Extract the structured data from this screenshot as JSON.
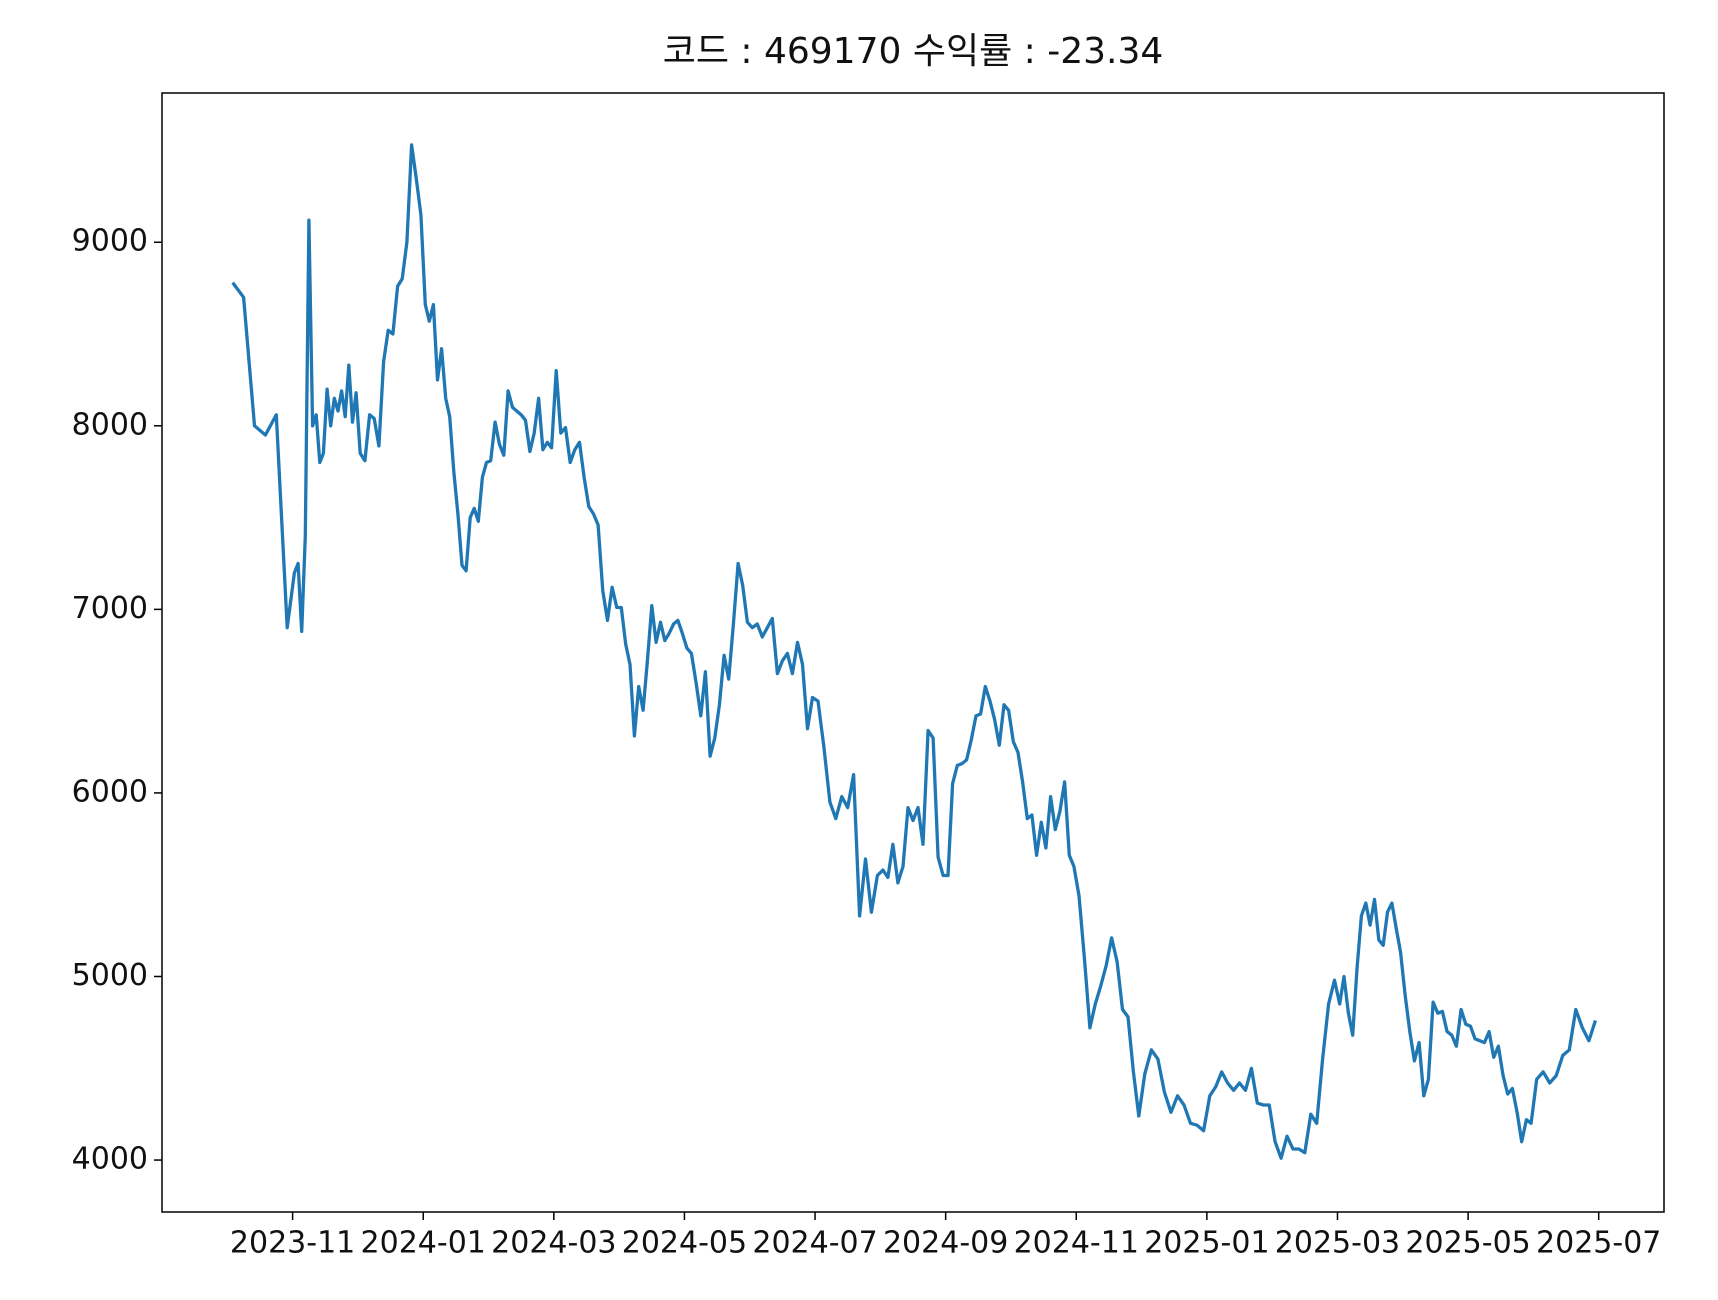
{
  "chart_data": {
    "type": "line",
    "title": "코드 : 469170 수익률 : -23.34",
    "color": "#1f77b4",
    "x": [
      "2023-10",
      "2023-10",
      "2023-10",
      "2023-10",
      "2023-10",
      "2023-10",
      "2023-11",
      "2023-11",
      "2023-11",
      "2023-11",
      "2023-11",
      "2023-11",
      "2023-11",
      "2023-11",
      "2023-11",
      "2023-11",
      "2023-11",
      "2023-11",
      "2023-11",
      "2023-11",
      "2023-11",
      "2023-11",
      "2023-11",
      "2023-11",
      "2023-12",
      "2023-12",
      "2023-12",
      "2023-12",
      "2023-12",
      "2023-12",
      "2023-12",
      "2023-12",
      "2023-12",
      "2023-12",
      "2023-12",
      "2023-12",
      "2023-12",
      "2023-12",
      "2024-01",
      "2024-01",
      "2024-01",
      "2024-01",
      "2024-01",
      "2024-01",
      "2024-01",
      "2024-01",
      "2024-01",
      "2024-01",
      "2024-01",
      "2024-01",
      "2024-01",
      "2024-01",
      "2024-01",
      "2024-01",
      "2024-02",
      "2024-02",
      "2024-02",
      "2024-02",
      "2024-02",
      "2024-02",
      "2024-02",
      "2024-02",
      "2024-02",
      "2024-02",
      "2024-02",
      "2024-02",
      "2024-02",
      "2024-02",
      "2024-02",
      "2024-03",
      "2024-03",
      "2024-03",
      "2024-03",
      "2024-03",
      "2024-03",
      "2024-03",
      "2024-03",
      "2024-03",
      "2024-03",
      "2024-03",
      "2024-03",
      "2024-03",
      "2024-03",
      "2024-04",
      "2024-04",
      "2024-04",
      "2024-04",
      "2024-04",
      "2024-04",
      "2024-04",
      "2024-04",
      "2024-04",
      "2024-04",
      "2024-04",
      "2024-04",
      "2024-04",
      "2024-04",
      "2024-04",
      "2024-05",
      "2024-05",
      "2024-05",
      "2024-05",
      "2024-05",
      "2024-05",
      "2024-05",
      "2024-05",
      "2024-05",
      "2024-05",
      "2024-05",
      "2024-05",
      "2024-05",
      "2024-05",
      "2024-06",
      "2024-06",
      "2024-06",
      "2024-06",
      "2024-06",
      "2024-06",
      "2024-06",
      "2024-06",
      "2024-06",
      "2024-06",
      "2024-06",
      "2024-06",
      "2024-06",
      "2024-07",
      "2024-07",
      "2024-07",
      "2024-07",
      "2024-07",
      "2024-07",
      "2024-07",
      "2024-07",
      "2024-07",
      "2024-07",
      "2024-07",
      "2024-08",
      "2024-08",
      "2024-08",
      "2024-08",
      "2024-08",
      "2024-08",
      "2024-08",
      "2024-08",
      "2024-08",
      "2024-08",
      "2024-08",
      "2024-08",
      "2024-08",
      "2024-09",
      "2024-09",
      "2024-09",
      "2024-09",
      "2024-09",
      "2024-09",
      "2024-09",
      "2024-09",
      "2024-09",
      "2024-09",
      "2024-09",
      "2024-09",
      "2024-09",
      "2024-09",
      "2024-10",
      "2024-10",
      "2024-10",
      "2024-10",
      "2024-10",
      "2024-10",
      "2024-10",
      "2024-10",
      "2024-10",
      "2024-10",
      "2024-10",
      "2024-10",
      "2024-10",
      "2024-10",
      "2024-11",
      "2024-11",
      "2024-11",
      "2024-11",
      "2024-11",
      "2024-11",
      "2024-11",
      "2024-11",
      "2024-11",
      "2024-11",
      "2024-11",
      "2024-11",
      "2024-12",
      "2024-12",
      "2024-12",
      "2024-12",
      "2024-12",
      "2024-12",
      "2024-12",
      "2024-12",
      "2024-12",
      "2024-12",
      "2025-01",
      "2025-01",
      "2025-01",
      "2025-01",
      "2025-01",
      "2025-01",
      "2025-01",
      "2025-01",
      "2025-01",
      "2025-01",
      "2025-01",
      "2025-02",
      "2025-02",
      "2025-02",
      "2025-02",
      "2025-02",
      "2025-02",
      "2025-02",
      "2025-02",
      "2025-02",
      "2025-02",
      "2025-02",
      "2025-03",
      "2025-03",
      "2025-03",
      "2025-03",
      "2025-03",
      "2025-03",
      "2025-03",
      "2025-03",
      "2025-03",
      "2025-03",
      "2025-03",
      "2025-03",
      "2025-03",
      "2025-03",
      "2025-03",
      "2025-04",
      "2025-04",
      "2025-04",
      "2025-04",
      "2025-04",
      "2025-04",
      "2025-04",
      "2025-04",
      "2025-04",
      "2025-04",
      "2025-04",
      "2025-04",
      "2025-04",
      "2025-04",
      "2025-05",
      "2025-05",
      "2025-05",
      "2025-05",
      "2025-05",
      "2025-05",
      "2025-05",
      "2025-05",
      "2025-05",
      "2025-05",
      "2025-05",
      "2025-05",
      "2025-05",
      "2025-05",
      "2025-06",
      "2025-06",
      "2025-06",
      "2025-06",
      "2025-06",
      "2025-06",
      "2025-06",
      "2025-06",
      "2025-06",
      "2025-06"
    ],
    "values": [
      8780,
      8700,
      8000,
      7950,
      8060,
      6900,
      7200,
      7250,
      6880,
      7400,
      9120,
      8000,
      8060,
      7800,
      7850,
      8200,
      8000,
      8150,
      8080,
      8190,
      8050,
      8330,
      8020,
      8180,
      7850,
      7810,
      8060,
      8040,
      7890,
      8350,
      8520,
      8500,
      8760,
      8800,
      9000,
      9530,
      9350,
      9150,
      8660,
      8570,
      8660,
      8250,
      8420,
      8150,
      8050,
      7750,
      7520,
      7240,
      7210,
      7500,
      7550,
      7480,
      7720,
      7800,
      7810,
      8020,
      7900,
      7840,
      8190,
      8100,
      8080,
      8060,
      8030,
      7860,
      7960,
      8150,
      7870,
      7910,
      7880,
      8300,
      7960,
      7990,
      7800,
      7870,
      7910,
      7720,
      7560,
      7520,
      7460,
      7100,
      6940,
      7120,
      7010,
      7010,
      6810,
      6700,
      6310,
      6580,
      6450,
      6720,
      7020,
      6820,
      6930,
      6830,
      6870,
      6920,
      6940,
      6870,
      6790,
      6760,
      6600,
      6420,
      6660,
      6200,
      6300,
      6480,
      6750,
      6620,
      6920,
      7250,
      7130,
      6930,
      6900,
      6920,
      6850,
      6900,
      6950,
      6650,
      6720,
      6760,
      6650,
      6820,
      6700,
      6350,
      6520,
      6500,
      6250,
      5950,
      5860,
      5980,
      5920,
      6100,
      5330,
      5640,
      5350,
      5550,
      5580,
      5540,
      5720,
      5510,
      5600,
      5920,
      5850,
      5920,
      5720,
      6340,
      6300,
      5650,
      5550,
      5550,
      6050,
      6150,
      6160,
      6180,
      6290,
      6420,
      6430,
      6580,
      6500,
      6400,
      6260,
      6480,
      6450,
      6280,
      6220,
      6060,
      5860,
      5880,
      5660,
      5840,
      5700,
      5980,
      5800,
      5900,
      6060,
      5660,
      5600,
      5440,
      5100,
      4720,
      4850,
      4950,
      5060,
      5210,
      5080,
      4820,
      4780,
      4480,
      4240,
      4470,
      4600,
      4550,
      4370,
      4260,
      4350,
      4300,
      4200,
      4190,
      4160,
      4350,
      4400,
      4480,
      4420,
      4380,
      4420,
      4380,
      4500,
      4310,
      4300,
      4300,
      4100,
      4010,
      4130,
      4060,
      4060,
      4040,
      4250,
      4200,
      4550,
      4850,
      4980,
      4850,
      5000,
      4800,
      4680,
      5050,
      5330,
      5400,
      5280,
      5420,
      5200,
      5170,
      5350,
      5400,
      5260,
      5130,
      4900,
      4700,
      4540,
      4640,
      4350,
      4440,
      4860,
      4800,
      4810,
      4700,
      4680,
      4620,
      4820,
      4740,
      4730,
      4660,
      4650,
      4640,
      4700,
      4560,
      4620,
      4460,
      4360,
      4390,
      4260,
      4100,
      4220,
      4200,
      4440,
      4480,
      4420,
      4460,
      4570,
      4600,
      4820,
      4720,
      4650,
      4760
    ],
    "xlim": [
      "2023-09",
      "2025-08"
    ],
    "xticks": [
      "2023-11",
      "2024-01",
      "2024-03",
      "2024-05",
      "2024-07",
      "2024-09",
      "2024-11",
      "2025-01",
      "2025-03",
      "2025-05",
      "2025-07"
    ],
    "ylim": [
      3717,
      9813
    ],
    "yticks": [
      4000,
      5000,
      6000,
      7000,
      8000,
      9000
    ],
    "grid": false
  }
}
